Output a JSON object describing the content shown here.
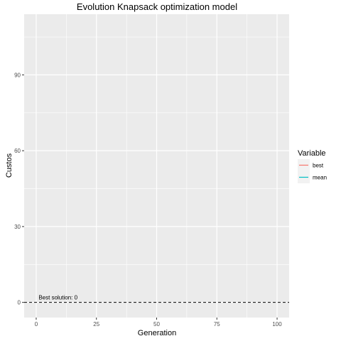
{
  "chart_data": {
    "type": "line",
    "title": "Evolution Knapsack optimization model",
    "xlabel": "Generation",
    "ylabel": "Custos",
    "xlim": [
      -5,
      105
    ],
    "ylim": [
      -6,
      114
    ],
    "x_ticks": [
      0,
      25,
      50,
      75,
      100
    ],
    "y_ticks": [
      0,
      30,
      60,
      90
    ],
    "grid": true,
    "legend": {
      "title": "Variable",
      "placement": "right"
    },
    "series": [
      {
        "name": "best",
        "color": "#F8766D",
        "x": [],
        "y": []
      },
      {
        "name": "mean",
        "color": "#00BFC4",
        "x": [],
        "y": []
      }
    ],
    "reference_line": {
      "y": 0,
      "style": "dashed",
      "color": "#000000"
    },
    "annotations": [
      {
        "text": "Best solution: 0",
        "x": 1,
        "y": 0
      }
    ]
  }
}
